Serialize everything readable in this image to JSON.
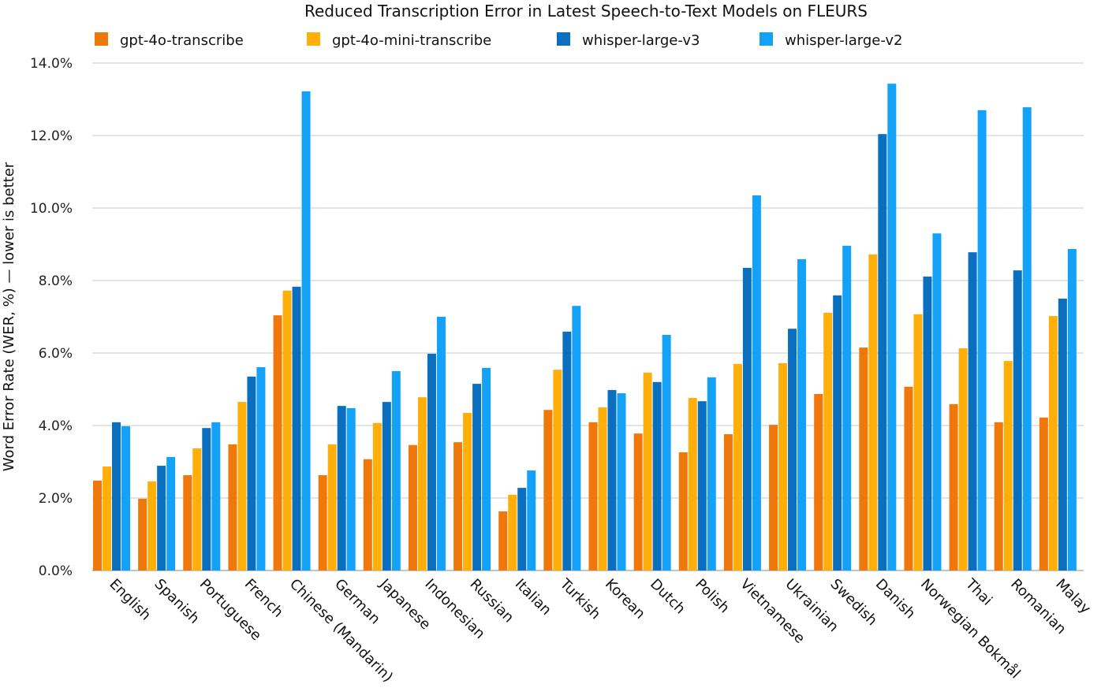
{
  "chart_data": {
    "type": "bar",
    "title": "Reduced Transcription Error in Latest Speech-to-Text Models on FLEURS",
    "xlabel": "",
    "ylabel": "Word Error Rate (WER, %) — lower is better",
    "ylim": [
      0,
      14
    ],
    "yticks": [
      "0.0%",
      "2.0%",
      "4.0%",
      "6.0%",
      "8.0%",
      "10.0%",
      "12.0%",
      "14.0%"
    ],
    "grid": true,
    "legend_position": "top",
    "categories": [
      "English",
      "Spanish",
      "Portuguese",
      "French",
      "Chinese (Mandarin)",
      "German",
      "Japanese",
      "Indonesian",
      "Russian",
      "Italian",
      "Turkish",
      "Korean",
      "Dutch",
      "Polish",
      "Vietnamese",
      "Ukrainian",
      "Swedish",
      "Danish",
      "Norwegian Bokmål",
      "Thai",
      "Romanian",
      "Malay"
    ],
    "series": [
      {
        "name": "gpt-4o-transcribe",
        "color": "#F0780A",
        "values": [
          2.48,
          1.98,
          2.63,
          3.48,
          7.04,
          2.63,
          3.07,
          3.46,
          3.54,
          1.63,
          4.43,
          4.09,
          3.78,
          3.26,
          3.76,
          4.02,
          4.87,
          6.15,
          5.07,
          4.59,
          4.09,
          4.22
        ]
      },
      {
        "name": "gpt-4o-mini-transcribe",
        "color": "#FFAE0A",
        "values": [
          2.87,
          2.46,
          3.37,
          4.65,
          7.72,
          3.48,
          4.07,
          4.78,
          4.35,
          2.09,
          5.54,
          4.5,
          5.46,
          4.76,
          5.7,
          5.72,
          7.11,
          8.72,
          7.07,
          6.13,
          5.78,
          7.02
        ]
      },
      {
        "name": "whisper-large-v3",
        "color": "#0B6FC0",
        "values": [
          4.09,
          2.89,
          3.93,
          5.35,
          7.83,
          4.54,
          4.65,
          5.98,
          5.15,
          2.28,
          6.59,
          4.98,
          5.2,
          4.67,
          8.35,
          6.67,
          7.59,
          12.04,
          8.11,
          8.78,
          8.28,
          7.5
        ]
      },
      {
        "name": "whisper-large-v2",
        "color": "#14A2F8",
        "values": [
          3.98,
          3.13,
          4.09,
          5.61,
          13.22,
          4.48,
          5.5,
          7.0,
          5.59,
          2.76,
          7.3,
          4.89,
          6.5,
          5.33,
          10.35,
          8.59,
          8.96,
          13.43,
          9.3,
          12.7,
          12.78,
          8.87
        ]
      }
    ]
  }
}
